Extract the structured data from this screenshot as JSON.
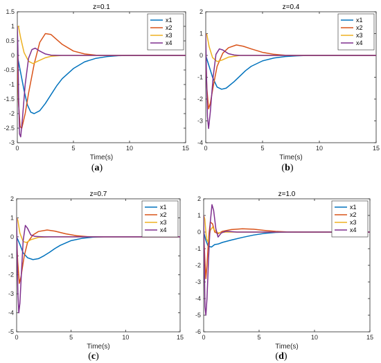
{
  "chart_data": [
    {
      "type": "line",
      "panel": "a",
      "caption_letter": "a",
      "title": "z=0.1",
      "xlabel": "Time(s)",
      "ylabel": "",
      "xlim": [
        0,
        15
      ],
      "ylim": [
        -3,
        1.5
      ],
      "xticks": [
        0,
        5,
        10,
        15
      ],
      "yticks": [
        -3,
        -2.5,
        -2,
        -1.5,
        -1,
        -0.5,
        0,
        0.5,
        1,
        1.5
      ],
      "legend_position": "top-right",
      "grid": false,
      "series": [
        {
          "name": "x1",
          "color": "#0072BD",
          "points": [
            [
              0,
              0
            ],
            [
              0.3,
              -0.6
            ],
            [
              0.6,
              -1.2
            ],
            [
              0.9,
              -1.7
            ],
            [
              1.2,
              -1.95
            ],
            [
              1.5,
              -2.0
            ],
            [
              2,
              -1.9
            ],
            [
              2.5,
              -1.65
            ],
            [
              3,
              -1.35
            ],
            [
              3.5,
              -1.05
            ],
            [
              4,
              -0.8
            ],
            [
              5,
              -0.45
            ],
            [
              6,
              -0.22
            ],
            [
              7,
              -0.1
            ],
            [
              8,
              -0.04
            ],
            [
              9,
              -0.01
            ],
            [
              10,
              0
            ],
            [
              15,
              0
            ]
          ]
        },
        {
          "name": "x2",
          "color": "#D95319",
          "points": [
            [
              0,
              0
            ],
            [
              0.1,
              -1.6
            ],
            [
              0.25,
              -2.45
            ],
            [
              0.4,
              -2.5
            ],
            [
              0.7,
              -2.0
            ],
            [
              1,
              -1.3
            ],
            [
              1.5,
              -0.3
            ],
            [
              2,
              0.45
            ],
            [
              2.5,
              0.75
            ],
            [
              3,
              0.72
            ],
            [
              3.5,
              0.55
            ],
            [
              4,
              0.38
            ],
            [
              5,
              0.15
            ],
            [
              6,
              0.05
            ],
            [
              7,
              0.01
            ],
            [
              8,
              0
            ],
            [
              15,
              0
            ]
          ]
        },
        {
          "name": "x3",
          "color": "#EDB120",
          "points": [
            [
              0,
              1
            ],
            [
              0.1,
              1.0
            ],
            [
              0.3,
              0.6
            ],
            [
              0.6,
              0.1
            ],
            [
              1,
              -0.2
            ],
            [
              1.4,
              -0.28
            ],
            [
              1.8,
              -0.2
            ],
            [
              2.5,
              -0.08
            ],
            [
              3,
              -0.03
            ],
            [
              4,
              0
            ],
            [
              15,
              0
            ]
          ]
        },
        {
          "name": "x4",
          "color": "#7E2F8E",
          "points": [
            [
              0,
              1
            ],
            [
              0.05,
              0.3
            ],
            [
              0.12,
              -1.5
            ],
            [
              0.2,
              -2.7
            ],
            [
              0.3,
              -2.8
            ],
            [
              0.45,
              -2.2
            ],
            [
              0.7,
              -1.0
            ],
            [
              1,
              -0.1
            ],
            [
              1.3,
              0.2
            ],
            [
              1.6,
              0.25
            ],
            [
              2,
              0.15
            ],
            [
              2.5,
              0.05
            ],
            [
              3,
              0.01
            ],
            [
              4,
              0
            ],
            [
              15,
              0
            ]
          ]
        }
      ]
    },
    {
      "type": "line",
      "panel": "b",
      "caption_letter": "b",
      "title": "z=0.4",
      "xlabel": "Time(s)",
      "ylabel": "",
      "xlim": [
        0,
        15
      ],
      "ylim": [
        -4,
        2
      ],
      "xticks": [
        0,
        5,
        10,
        15
      ],
      "yticks": [
        -4,
        -3,
        -2,
        -1,
        0,
        1,
        2
      ],
      "legend_position": "top-right",
      "grid": false,
      "series": [
        {
          "name": "x1",
          "color": "#0072BD",
          "points": [
            [
              0,
              0
            ],
            [
              0.3,
              -0.5
            ],
            [
              0.6,
              -1.0
            ],
            [
              1,
              -1.45
            ],
            [
              1.4,
              -1.55
            ],
            [
              1.8,
              -1.5
            ],
            [
              2.5,
              -1.2
            ],
            [
              3,
              -0.95
            ],
            [
              3.5,
              -0.7
            ],
            [
              4,
              -0.5
            ],
            [
              5,
              -0.25
            ],
            [
              6,
              -0.12
            ],
            [
              7,
              -0.05
            ],
            [
              8,
              -0.02
            ],
            [
              9,
              0
            ],
            [
              15,
              0
            ]
          ]
        },
        {
          "name": "x2",
          "color": "#D95319",
          "points": [
            [
              0,
              0
            ],
            [
              0.1,
              -1.5
            ],
            [
              0.25,
              -2.45
            ],
            [
              0.4,
              -2.2
            ],
            [
              0.7,
              -1.3
            ],
            [
              1,
              -0.5
            ],
            [
              1.5,
              0.1
            ],
            [
              2,
              0.35
            ],
            [
              2.7,
              0.48
            ],
            [
              3.3,
              0.42
            ],
            [
              4,
              0.3
            ],
            [
              5,
              0.14
            ],
            [
              6,
              0.05
            ],
            [
              7,
              0.01
            ],
            [
              8,
              0
            ],
            [
              15,
              0
            ]
          ]
        },
        {
          "name": "x3",
          "color": "#EDB120",
          "points": [
            [
              0,
              1
            ],
            [
              0.1,
              0.95
            ],
            [
              0.3,
              0.4
            ],
            [
              0.6,
              -0.1
            ],
            [
              1,
              -0.28
            ],
            [
              1.4,
              -0.22
            ],
            [
              2,
              -0.08
            ],
            [
              3,
              0
            ],
            [
              15,
              0
            ]
          ]
        },
        {
          "name": "x4",
          "color": "#7E2F8E",
          "points": [
            [
              0,
              1
            ],
            [
              0.05,
              -0.5
            ],
            [
              0.15,
              -2.8
            ],
            [
              0.25,
              -3.35
            ],
            [
              0.4,
              -2.6
            ],
            [
              0.65,
              -1.0
            ],
            [
              0.9,
              0.05
            ],
            [
              1.2,
              0.3
            ],
            [
              1.5,
              0.25
            ],
            [
              2,
              0.08
            ],
            [
              2.5,
              0.02
            ],
            [
              3,
              0
            ],
            [
              15,
              0
            ]
          ]
        }
      ]
    },
    {
      "type": "line",
      "panel": "c",
      "caption_letter": "c",
      "title": "z=0.7",
      "xlabel": "Time(s)",
      "ylabel": "",
      "xlim": [
        0,
        15
      ],
      "ylim": [
        -5,
        2
      ],
      "xticks": [
        0,
        5,
        10,
        15
      ],
      "yticks": [
        -5,
        -4,
        -3,
        -2,
        -1,
        0,
        1,
        2
      ],
      "legend_position": "top-right",
      "grid": false,
      "series": [
        {
          "name": "x1",
          "color": "#0072BD",
          "points": [
            [
              0,
              0
            ],
            [
              0.3,
              -0.4
            ],
            [
              0.6,
              -0.85
            ],
            [
              1,
              -1.1
            ],
            [
              1.5,
              -1.2
            ],
            [
              2,
              -1.15
            ],
            [
              2.5,
              -1.0
            ],
            [
              3,
              -0.82
            ],
            [
              3.5,
              -0.62
            ],
            [
              4,
              -0.45
            ],
            [
              5,
              -0.2
            ],
            [
              6,
              -0.08
            ],
            [
              7,
              -0.02
            ],
            [
              8,
              0
            ],
            [
              15,
              0
            ]
          ]
        },
        {
          "name": "x2",
          "color": "#D95319",
          "points": [
            [
              0,
              0
            ],
            [
              0.1,
              -1.3
            ],
            [
              0.25,
              -2.45
            ],
            [
              0.4,
              -2.1
            ],
            [
              0.7,
              -1.0
            ],
            [
              1,
              -0.3
            ],
            [
              1.5,
              0.1
            ],
            [
              2,
              0.28
            ],
            [
              2.8,
              0.36
            ],
            [
              3.5,
              0.3
            ],
            [
              4.5,
              0.16
            ],
            [
              5.5,
              0.06
            ],
            [
              6.5,
              0.01
            ],
            [
              7.5,
              0
            ],
            [
              15,
              0
            ]
          ]
        },
        {
          "name": "x3",
          "color": "#EDB120",
          "points": [
            [
              0,
              1
            ],
            [
              0.1,
              0.9
            ],
            [
              0.3,
              0.2
            ],
            [
              0.6,
              -0.25
            ],
            [
              0.9,
              -0.3
            ],
            [
              1.3,
              -0.15
            ],
            [
              2,
              -0.03
            ],
            [
              3,
              0
            ],
            [
              15,
              0
            ]
          ]
        },
        {
          "name": "x4",
          "color": "#7E2F8E",
          "points": [
            [
              0,
              1
            ],
            [
              0.05,
              -1.0
            ],
            [
              0.12,
              -3.0
            ],
            [
              0.2,
              -4.0
            ],
            [
              0.3,
              -3.5
            ],
            [
              0.45,
              -1.8
            ],
            [
              0.6,
              -0.2
            ],
            [
              0.8,
              0.6
            ],
            [
              1.0,
              0.45
            ],
            [
              1.3,
              0.1
            ],
            [
              1.7,
              0.02
            ],
            [
              2.5,
              0
            ],
            [
              15,
              0
            ]
          ]
        }
      ]
    },
    {
      "type": "line",
      "panel": "d",
      "caption_letter": "d",
      "title": "z=1.0",
      "xlabel": "Time(s)",
      "ylabel": "",
      "xlim": [
        0,
        15
      ],
      "ylim": [
        -6,
        2
      ],
      "xticks": [
        0,
        5,
        10,
        15
      ],
      "yticks": [
        -6,
        -5,
        -4,
        -3,
        -2,
        -1,
        0,
        1,
        2
      ],
      "legend_position": "top-right",
      "grid": false,
      "series": [
        {
          "name": "x1",
          "color": "#0072BD",
          "points": [
            [
              0,
              0
            ],
            [
              0.2,
              -0.5
            ],
            [
              0.4,
              -0.85
            ],
            [
              0.7,
              -0.9
            ],
            [
              1,
              -0.75
            ],
            [
              1.3,
              -0.72
            ],
            [
              1.7,
              -0.62
            ],
            [
              2.5,
              -0.48
            ],
            [
              3.5,
              -0.32
            ],
            [
              4.5,
              -0.18
            ],
            [
              5.5,
              -0.08
            ],
            [
              6.5,
              -0.02
            ],
            [
              7.5,
              0
            ],
            [
              15,
              0
            ]
          ]
        },
        {
          "name": "x2",
          "color": "#D95319",
          "points": [
            [
              0,
              0
            ],
            [
              0.1,
              -1.5
            ],
            [
              0.2,
              -2.8
            ],
            [
              0.3,
              -2.0
            ],
            [
              0.45,
              -0.3
            ],
            [
              0.6,
              0.6
            ],
            [
              0.8,
              0.5
            ],
            [
              1,
              0.0
            ],
            [
              1.3,
              -0.1
            ],
            [
              1.7,
              0.05
            ],
            [
              2.5,
              0.15
            ],
            [
              3.5,
              0.2
            ],
            [
              4.5,
              0.17
            ],
            [
              5.5,
              0.1
            ],
            [
              6.5,
              0.04
            ],
            [
              7.5,
              0.01
            ],
            [
              9,
              0
            ],
            [
              15,
              0
            ]
          ]
        },
        {
          "name": "x3",
          "color": "#EDB120",
          "points": [
            [
              0,
              1
            ],
            [
              0.1,
              0.8
            ],
            [
              0.25,
              -0.4
            ],
            [
              0.4,
              -0.6
            ],
            [
              0.6,
              0.1
            ],
            [
              0.8,
              0.3
            ],
            [
              1.0,
              0.1
            ],
            [
              1.3,
              -0.05
            ],
            [
              2,
              0
            ],
            [
              15,
              0
            ]
          ]
        },
        {
          "name": "x4",
          "color": "#7E2F8E",
          "points": [
            [
              0,
              1
            ],
            [
              0.05,
              -1.5
            ],
            [
              0.12,
              -4.5
            ],
            [
              0.2,
              -5.0
            ],
            [
              0.3,
              -4.0
            ],
            [
              0.45,
              -1.5
            ],
            [
              0.6,
              0.6
            ],
            [
              0.75,
              1.65
            ],
            [
              0.9,
              1.3
            ],
            [
              1.1,
              0.2
            ],
            [
              1.3,
              -0.3
            ],
            [
              1.6,
              -0.05
            ],
            [
              2,
              0.05
            ],
            [
              3,
              0
            ],
            [
              15,
              0
            ]
          ]
        }
      ]
    }
  ]
}
